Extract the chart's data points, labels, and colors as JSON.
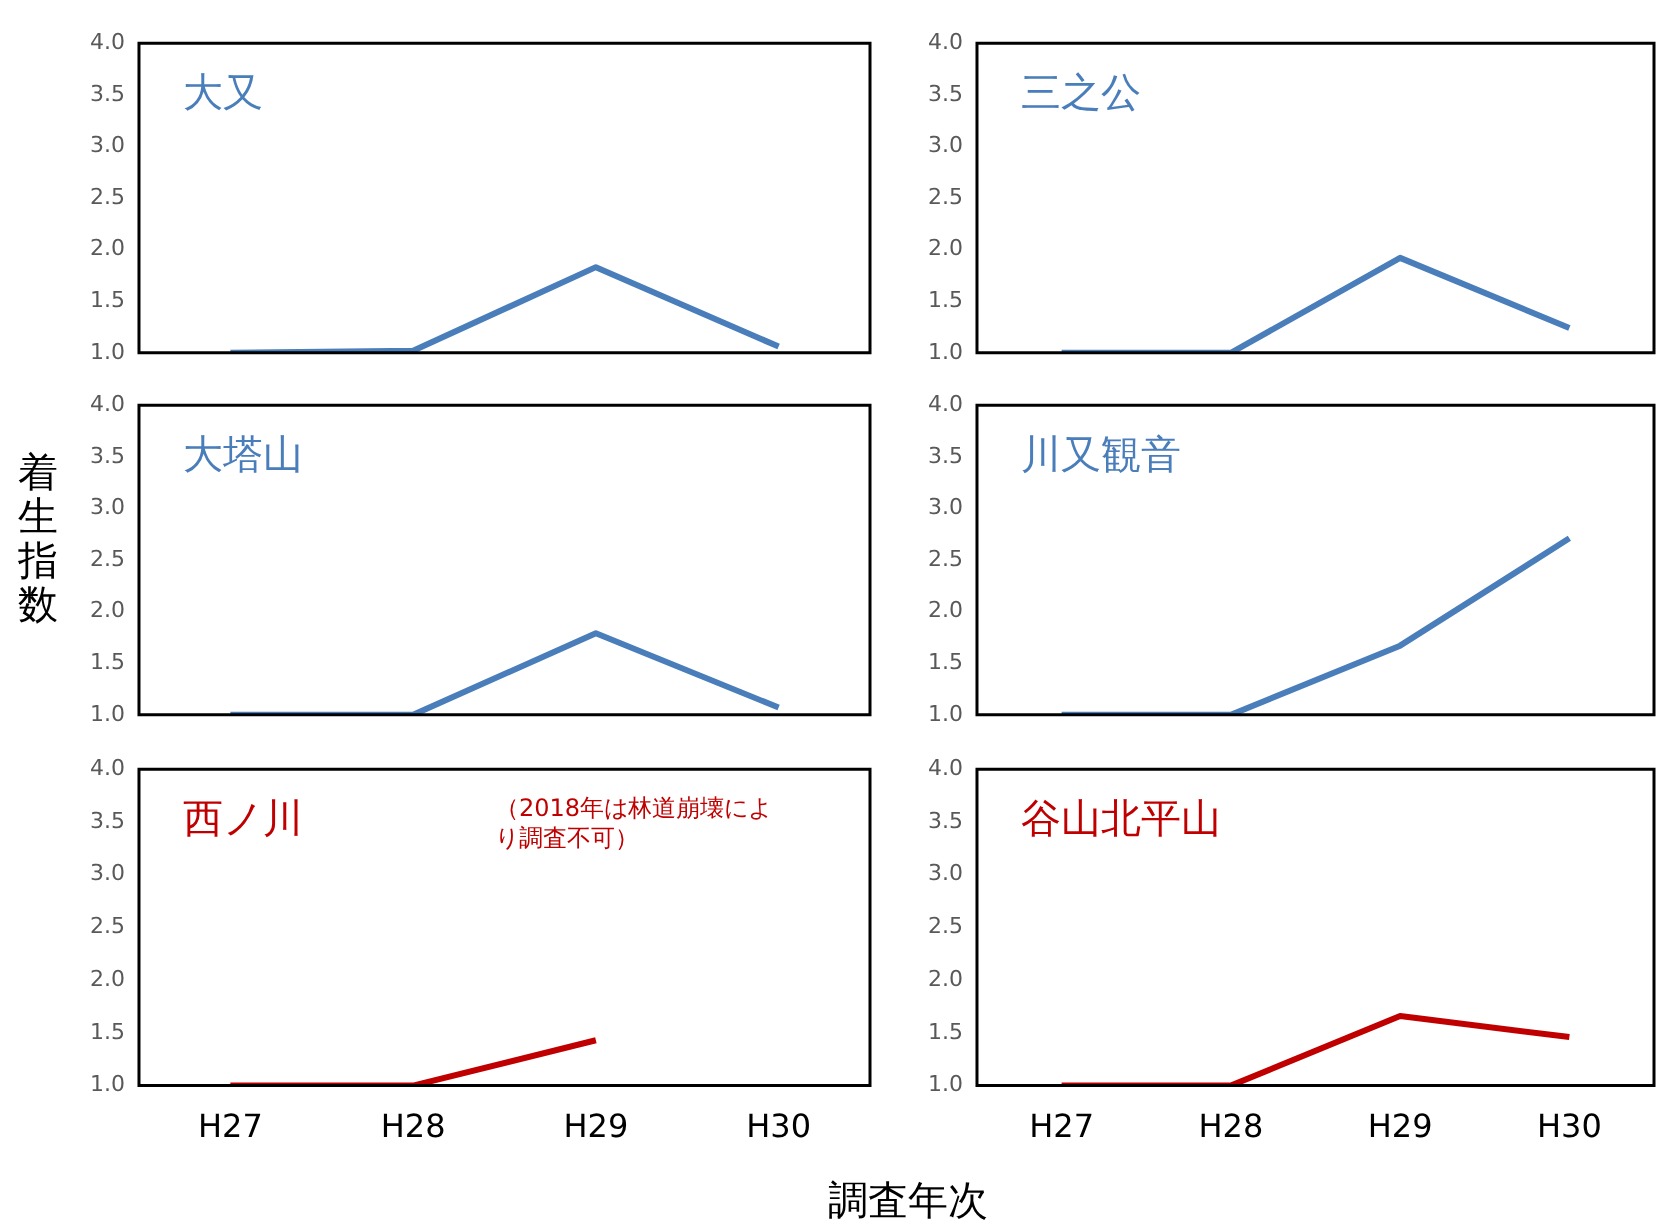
{
  "chart_data": [
    {
      "type": "line",
      "title": "大又",
      "categories": [
        null,
        null,
        null,
        null
      ],
      "series": [
        {
          "color": "#4a7ebb",
          "values": [
            1.0,
            1.02,
            1.83,
            1.06
          ]
        }
      ],
      "ylim": [
        1.0,
        4.0
      ],
      "yticks": [
        {
          "value": 1,
          "label": "1.0"
        },
        {
          "value": 1.5,
          "label": "1.5"
        },
        {
          "value": 2,
          "label": "2.0"
        },
        {
          "value": 2.5,
          "label": "2.5"
        },
        {
          "value": 3,
          "label": "3.0"
        },
        {
          "value": 3.5,
          "label": "3.5"
        },
        {
          "value": 4,
          "label": "4.0"
        }
      ],
      "tick_labels": "y",
      "legend": false,
      "grid": false,
      "marker": "none",
      "line_style": "solid"
    },
    {
      "type": "line",
      "title": "三之公",
      "categories": [
        null,
        null,
        null,
        null
      ],
      "series": [
        {
          "color": "#4a7ebb",
          "values": [
            1.0,
            1.0,
            1.92,
            1.24
          ]
        }
      ],
      "ylim": [
        1.0,
        4.0
      ],
      "yticks": [
        {
          "value": 1,
          "label": "1.0"
        },
        {
          "value": 1.5,
          "label": "1.5"
        },
        {
          "value": 2,
          "label": "2.0"
        },
        {
          "value": 2.5,
          "label": "2.5"
        },
        {
          "value": 3,
          "label": "3.0"
        },
        {
          "value": 3.5,
          "label": "3.5"
        },
        {
          "value": 4,
          "label": "4.0"
        }
      ],
      "tick_labels": "y",
      "legend": false,
      "grid": false,
      "marker": "none",
      "line_style": "solid"
    },
    {
      "type": "line",
      "title": "大塔山",
      "ylabel": "着生指数",
      "categories": [
        null,
        null,
        null,
        null
      ],
      "series": [
        {
          "color": "#4a7ebb",
          "values": [
            1.0,
            1.0,
            1.79,
            1.07
          ]
        }
      ],
      "ylim": [
        1.0,
        4.0
      ],
      "yticks": [
        {
          "value": 1,
          "label": "1.0"
        },
        {
          "value": 1.5,
          "label": "1.5"
        },
        {
          "value": 2,
          "label": "2.0"
        },
        {
          "value": 2.5,
          "label": "2.5"
        },
        {
          "value": 3,
          "label": "3.0"
        },
        {
          "value": 3.5,
          "label": "3.5"
        },
        {
          "value": 4,
          "label": "4.0"
        }
      ],
      "tick_labels": "y",
      "legend": false,
      "grid": false,
      "marker": "none",
      "line_style": "solid"
    },
    {
      "type": "line",
      "title": "川又観音",
      "categories": [
        null,
        null,
        null,
        null
      ],
      "series": [
        {
          "color": "#4a7ebb",
          "values": [
            1.0,
            1.0,
            1.67,
            2.71
          ]
        }
      ],
      "ylim": [
        1.0,
        4.0
      ],
      "yticks": [
        {
          "value": 1,
          "label": "1.0"
        },
        {
          "value": 1.5,
          "label": "1.5"
        },
        {
          "value": 2,
          "label": "2.0"
        },
        {
          "value": 2.5,
          "label": "2.5"
        },
        {
          "value": 3,
          "label": "3.0"
        },
        {
          "value": 3.5,
          "label": "3.5"
        },
        {
          "value": 4,
          "label": "4.0"
        }
      ],
      "tick_labels": "y",
      "legend": false,
      "grid": false,
      "marker": "none",
      "line_style": "solid"
    },
    {
      "type": "line",
      "title": "西ノ川",
      "xlabel": "調査年次",
      "annotations": [
        "（2018年は林道崩壊により調査不可）"
      ],
      "categories": [
        "H27",
        "H28",
        "H29",
        "H30"
      ],
      "series": [
        {
          "color": "#c00000",
          "values": [
            1.0,
            1.0,
            1.43,
            null
          ]
        }
      ],
      "ylim": [
        1.0,
        4.0
      ],
      "yticks": [
        {
          "value": 1,
          "label": "1.0"
        },
        {
          "value": 1.5,
          "label": "1.5"
        },
        {
          "value": 2,
          "label": "2.0"
        },
        {
          "value": 2.5,
          "label": "2.5"
        },
        {
          "value": 3,
          "label": "3.0"
        },
        {
          "value": 3.5,
          "label": "3.5"
        },
        {
          "value": 4,
          "label": "4.0"
        }
      ],
      "legend": false,
      "grid": false,
      "marker": "none",
      "line_style": "solid"
    },
    {
      "type": "line",
      "title": "谷山北平山",
      "categories": [
        "H27",
        "H28",
        "H29",
        "H30"
      ],
      "series": [
        {
          "color": "#c00000",
          "values": [
            1.0,
            1.0,
            1.66,
            1.46
          ]
        }
      ],
      "ylim": [
        1.0,
        4.0
      ],
      "yticks": [
        {
          "value": 1,
          "label": "1.0"
        },
        {
          "value": 1.5,
          "label": "1.5"
        },
        {
          "value": 2,
          "label": "2.0"
        },
        {
          "value": 2.5,
          "label": "2.5"
        },
        {
          "value": 3,
          "label": "3.0"
        },
        {
          "value": 3.5,
          "label": "3.5"
        },
        {
          "value": 4,
          "label": "4.0"
        }
      ],
      "legend": false,
      "grid": false,
      "marker": "none",
      "line_style": "solid"
    }
  ]
}
